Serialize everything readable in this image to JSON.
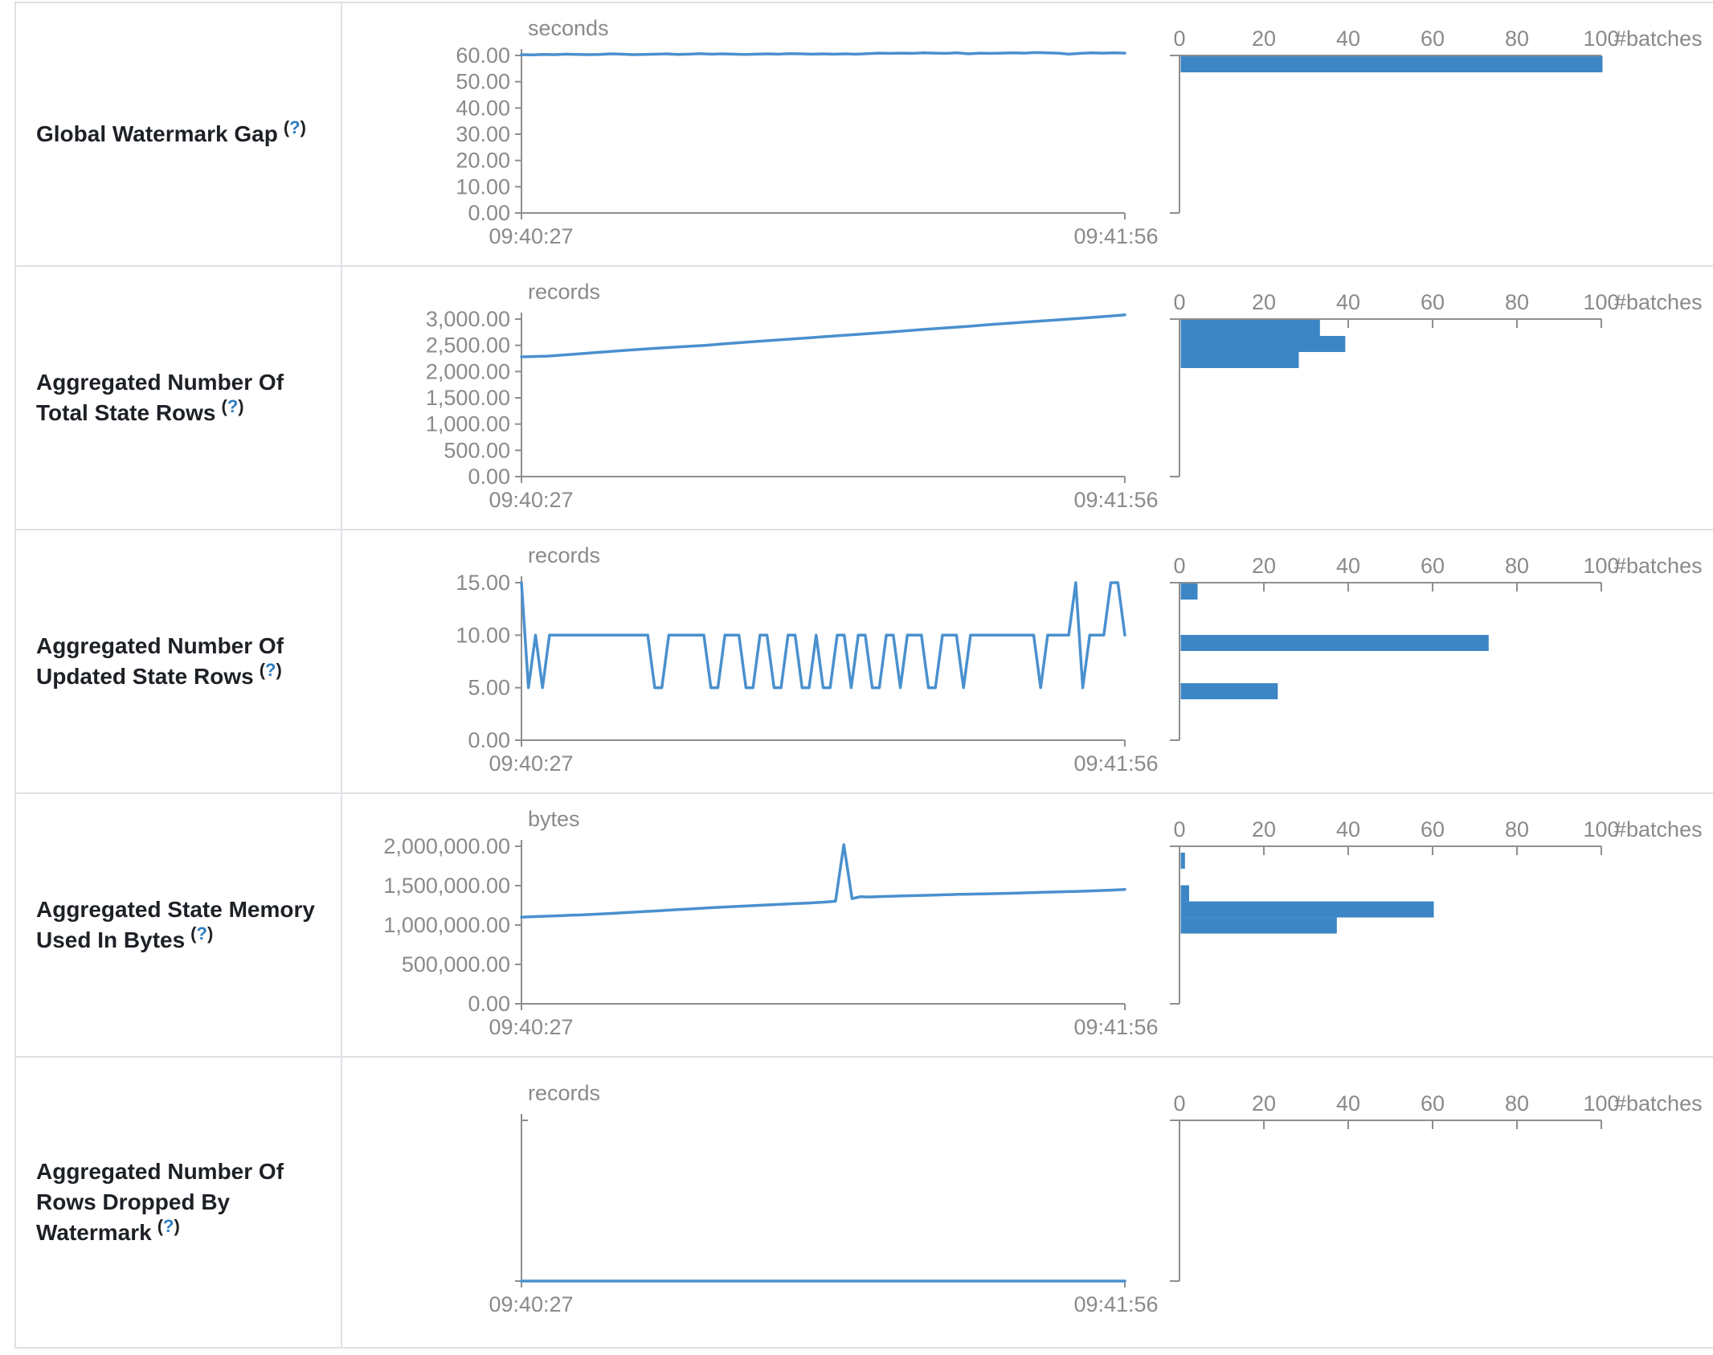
{
  "common": {
    "x_start": "09:40:27",
    "x_end": "09:41:56",
    "help": {
      "open": "(",
      "q": "?",
      "close": ")"
    },
    "hist_axis": {
      "tick_values": [
        0,
        20,
        40,
        60,
        80,
        100
      ],
      "tick_labels": [
        "0",
        "20",
        "40",
        "60",
        "80",
        "100"
      ],
      "unit": "#batches",
      "range": [
        0,
        100
      ]
    },
    "colors": {
      "line": "#4a90ce",
      "bar": "#3d86c5",
      "axis": "#8f8f8f",
      "axis_text": "#8a8a8a",
      "label_text": "#1d2126",
      "help_link": "#2e7cc0",
      "border": "#dee2e6"
    }
  },
  "chart_data": [
    {
      "label": "Global Watermark Gap",
      "timeline": {
        "type": "line",
        "unit": "seconds",
        "y_max": 60,
        "grid": false,
        "y_ticks": [
          {
            "v": 60,
            "t": "60.00"
          },
          {
            "v": 50,
            "t": "50.00"
          },
          {
            "v": 40,
            "t": "40.00"
          },
          {
            "v": 30,
            "t": "30.00"
          },
          {
            "v": 20,
            "t": "20.00"
          },
          {
            "v": 10,
            "t": "10.00"
          },
          {
            "v": 0,
            "t": "0.00"
          }
        ],
        "values": [
          60.3,
          60.2,
          60.4,
          60.3,
          60.5,
          60.4,
          60.3,
          60.4,
          60.6,
          60.5,
          60.3,
          60.4,
          60.5,
          60.6,
          60.4,
          60.5,
          60.7,
          60.5,
          60.6,
          60.5,
          60.4,
          60.5,
          60.6,
          60.5,
          60.7,
          60.6,
          60.5,
          60.6,
          60.5,
          60.6,
          60.5,
          60.7,
          60.9,
          60.8,
          60.9,
          60.8,
          61.0,
          60.9,
          60.8,
          61.0,
          60.6,
          60.9,
          60.8,
          60.9,
          61.0,
          60.9,
          61.1,
          61.0,
          60.9,
          60.5,
          60.8,
          61.0,
          60.9,
          61.0,
          60.9
        ]
      },
      "histogram": {
        "type": "bar",
        "bins": [
          {
            "top": 60,
            "count": 100
          }
        ]
      }
    },
    {
      "label": "Aggregated Number Of Total State Rows",
      "timeline": {
        "type": "line",
        "unit": "records",
        "y_max": 3000,
        "grid": false,
        "y_ticks": [
          {
            "v": 3000,
            "t": "3,000.00"
          },
          {
            "v": 2500,
            "t": "2,500.00"
          },
          {
            "v": 2000,
            "t": "2,000.00"
          },
          {
            "v": 1500,
            "t": "1,500.00"
          },
          {
            "v": 1000,
            "t": "1,000.00"
          },
          {
            "v": 500,
            "t": "500.00"
          },
          {
            "v": 0,
            "t": "0.00"
          }
        ],
        "values": [
          2280,
          2295,
          2330,
          2370,
          2405,
          2440,
          2470,
          2500,
          2540,
          2575,
          2610,
          2645,
          2680,
          2715,
          2750,
          2790,
          2825,
          2860,
          2900,
          2935,
          2970,
          3005,
          3040,
          3080
        ]
      },
      "histogram": {
        "type": "bar",
        "bins": [
          {
            "top": 3000,
            "count": 33
          },
          {
            "top": 2694,
            "count": 39
          },
          {
            "top": 2388,
            "count": 28
          }
        ]
      }
    },
    {
      "label": "Aggregated Number Of Updated State Rows",
      "timeline": {
        "type": "line",
        "unit": "records",
        "y_max": 15,
        "grid": false,
        "y_ticks": [
          {
            "v": 15,
            "t": "15.00"
          },
          {
            "v": 10,
            "t": "10.00"
          },
          {
            "v": 5,
            "t": "5.00"
          },
          {
            "v": 0,
            "t": "0.00"
          }
        ],
        "values": [
          15,
          5,
          10,
          5,
          10,
          10,
          10,
          10,
          10,
          10,
          10,
          10,
          10,
          10,
          10,
          10,
          10,
          10,
          10,
          5,
          5,
          10,
          10,
          10,
          10,
          10,
          10,
          5,
          5,
          10,
          10,
          10,
          5,
          5,
          10,
          10,
          5,
          5,
          10,
          10,
          5,
          5,
          10,
          5,
          5,
          10,
          10,
          5,
          10,
          10,
          5,
          5,
          10,
          10,
          5,
          10,
          10,
          10,
          5,
          5,
          10,
          10,
          10,
          5,
          10,
          10,
          10,
          10,
          10,
          10,
          10,
          10,
          10,
          10,
          5,
          10,
          10,
          10,
          10,
          15,
          5,
          10,
          10,
          10,
          15,
          15,
          10
        ]
      },
      "histogram": {
        "type": "bar",
        "bins": [
          {
            "top": 15,
            "count": 4
          },
          {
            "top": 10.1,
            "count": 73
          },
          {
            "top": 5.5,
            "count": 23
          }
        ]
      }
    },
    {
      "label": "Aggregated State Memory Used In Bytes",
      "timeline": {
        "type": "line",
        "unit": "bytes",
        "y_max": 2000000,
        "grid": false,
        "y_ticks": [
          {
            "v": 2000000,
            "t": "2,000,000.00"
          },
          {
            "v": 1500000,
            "t": "1,500,000.00"
          },
          {
            "v": 1000000,
            "t": "1,000,000.00"
          },
          {
            "v": 500000,
            "t": "500,000.00"
          },
          {
            "v": 0,
            "t": "0.00"
          }
        ],
        "values": [
          1100000,
          1104000,
          1108000,
          1112000,
          1116000,
          1120000,
          1124000,
          1128000,
          1133000,
          1138000,
          1143000,
          1148000,
          1154000,
          1160000,
          1166000,
          1172000,
          1178000,
          1184000,
          1190000,
          1196000,
          1202000,
          1208000,
          1214000,
          1220000,
          1226000,
          1231000,
          1236000,
          1241000,
          1246000,
          1251000,
          1256000,
          1261000,
          1266000,
          1271000,
          1276000,
          1281000,
          1287000,
          1294000,
          1302000,
          2020000,
          1335000,
          1360000,
          1356000,
          1360000,
          1363000,
          1366000,
          1369000,
          1372000,
          1375000,
          1378000,
          1381000,
          1384000,
          1387000,
          1390000,
          1392000,
          1394000,
          1396000,
          1398000,
          1400000,
          1403000,
          1406000,
          1409000,
          1412000,
          1415000,
          1418000,
          1421000,
          1424000,
          1427000,
          1430000,
          1434000,
          1438000,
          1442000,
          1446000,
          1452000
        ]
      },
      "histogram": {
        "type": "bar",
        "bins": [
          {
            "top": 1930000,
            "count": 1
          },
          {
            "top": 1515000,
            "count": 2
          },
          {
            "top": 1310000,
            "count": 60
          },
          {
            "top": 1106000,
            "count": 37
          }
        ]
      }
    },
    {
      "label": "Aggregated Number Of Rows Dropped By Watermark",
      "timeline": {
        "type": "line",
        "unit": "records",
        "y_max": 1,
        "grid": false,
        "y_ticks": [],
        "values": [
          0,
          0
        ]
      },
      "histogram": {
        "type": "bar",
        "bins": []
      }
    }
  ]
}
